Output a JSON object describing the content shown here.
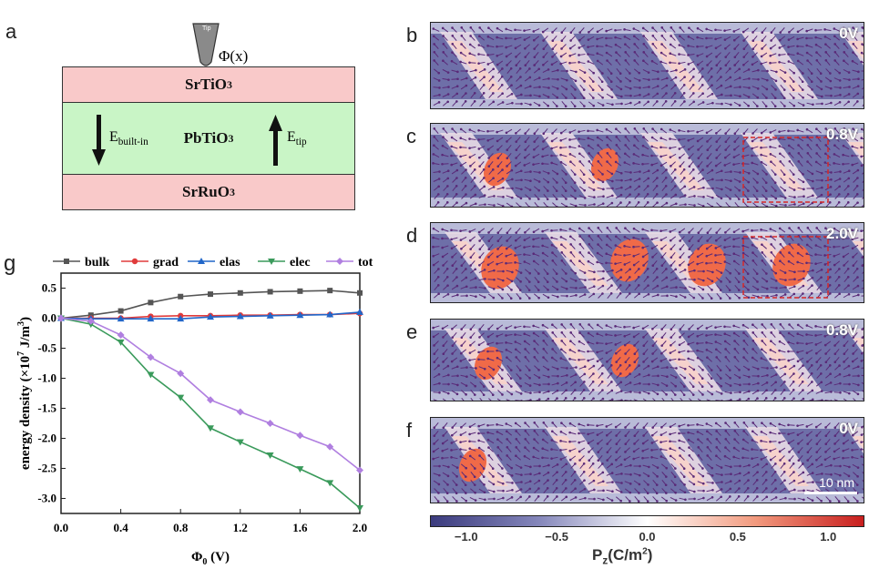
{
  "panel_labels": {
    "a": "a",
    "b": "b",
    "c": "c",
    "d": "d",
    "e": "e",
    "f": "f",
    "g": "g"
  },
  "schematic": {
    "tip_label": "Tip",
    "potential": "Φ(x)",
    "top_layer": "SrTiO",
    "top_layer_sub": "3",
    "middle_layer": "PbTiO",
    "middle_layer_sub": "3",
    "bottom_layer": "SrRuO",
    "bottom_layer_sub": "3",
    "e_builtin": "E",
    "e_builtin_sub": "built-in",
    "e_tip": "E",
    "e_tip_sub": "tip",
    "colors": {
      "electrode": "#f9c9c9",
      "ferroelectric": "#c9f5c6",
      "tip": "#8a8a8a"
    }
  },
  "maps": [
    {
      "voltage": "0V",
      "dashed_box": false
    },
    {
      "voltage": "0.8V",
      "dashed_box": true
    },
    {
      "voltage": "2.0V",
      "dashed_box": true
    },
    {
      "voltage": "0.8V",
      "dashed_box": false
    },
    {
      "voltage": "0V",
      "dashed_box": false
    }
  ],
  "scale_bar": "10 nm",
  "colorbar": {
    "ticks": [
      "−1.0",
      "−0.5",
      "0.0",
      "0.5",
      "1.0"
    ],
    "label": "P",
    "label_sub": "z",
    "label_unit": "(C/m",
    "label_sup": "2",
    "label_close": ")",
    "range": [
      -1.2,
      1.2
    ],
    "colors": [
      "#3b3b7e",
      "#ffffff",
      "#c81e1e"
    ]
  },
  "chart_data": {
    "type": "line",
    "xlabel": "Φ",
    "xlabel_sub": "0",
    "xlabel_unit": " (V)",
    "ylabel": "energy density (×10",
    "ylabel_sup": "7",
    "ylabel_unit": " J/m",
    "ylabel_sup2": "3",
    "ylabel_close": ")",
    "xlim": [
      0,
      2.0
    ],
    "ylim": [
      -3.25,
      0.75
    ],
    "xticks": [
      "0.0",
      "0.4",
      "0.8",
      "1.2",
      "1.6",
      "2.0"
    ],
    "yticks": [
      "0.5",
      "0.0",
      "-0.5",
      "-1.0",
      "-1.5",
      "-2.0",
      "-2.5",
      "-3.0"
    ],
    "legend_position": "top",
    "x": [
      0,
      0.2,
      0.4,
      0.6,
      0.8,
      1.0,
      1.2,
      1.4,
      1.6,
      1.8,
      2.0
    ],
    "series": [
      {
        "name": "bulk",
        "color": "#555555",
        "marker": "square",
        "values": [
          0,
          0.05,
          0.12,
          0.26,
          0.36,
          0.4,
          0.42,
          0.44,
          0.45,
          0.46,
          0.42
        ]
      },
      {
        "name": "grad",
        "color": "#e03b3b",
        "marker": "circle",
        "values": [
          0,
          0,
          0,
          0.03,
          0.04,
          0.04,
          0.05,
          0.05,
          0.06,
          0.06,
          0.08
        ]
      },
      {
        "name": "elas",
        "color": "#2166c9",
        "marker": "triangle-up",
        "values": [
          0,
          -0.01,
          -0.01,
          -0.01,
          -0.01,
          0.02,
          0.03,
          0.04,
          0.05,
          0.06,
          0.1
        ]
      },
      {
        "name": "elec",
        "color": "#3a9a5b",
        "marker": "triangle-down",
        "values": [
          0,
          -0.1,
          -0.4,
          -0.94,
          -1.32,
          -1.83,
          -2.06,
          -2.28,
          -2.51,
          -2.74,
          -3.16
        ]
      },
      {
        "name": "tot",
        "color": "#b07fe0",
        "marker": "diamond",
        "values": [
          0,
          -0.05,
          -0.28,
          -0.65,
          -0.92,
          -1.36,
          -1.56,
          -1.75,
          -1.95,
          -2.14,
          -2.53
        ]
      }
    ]
  }
}
